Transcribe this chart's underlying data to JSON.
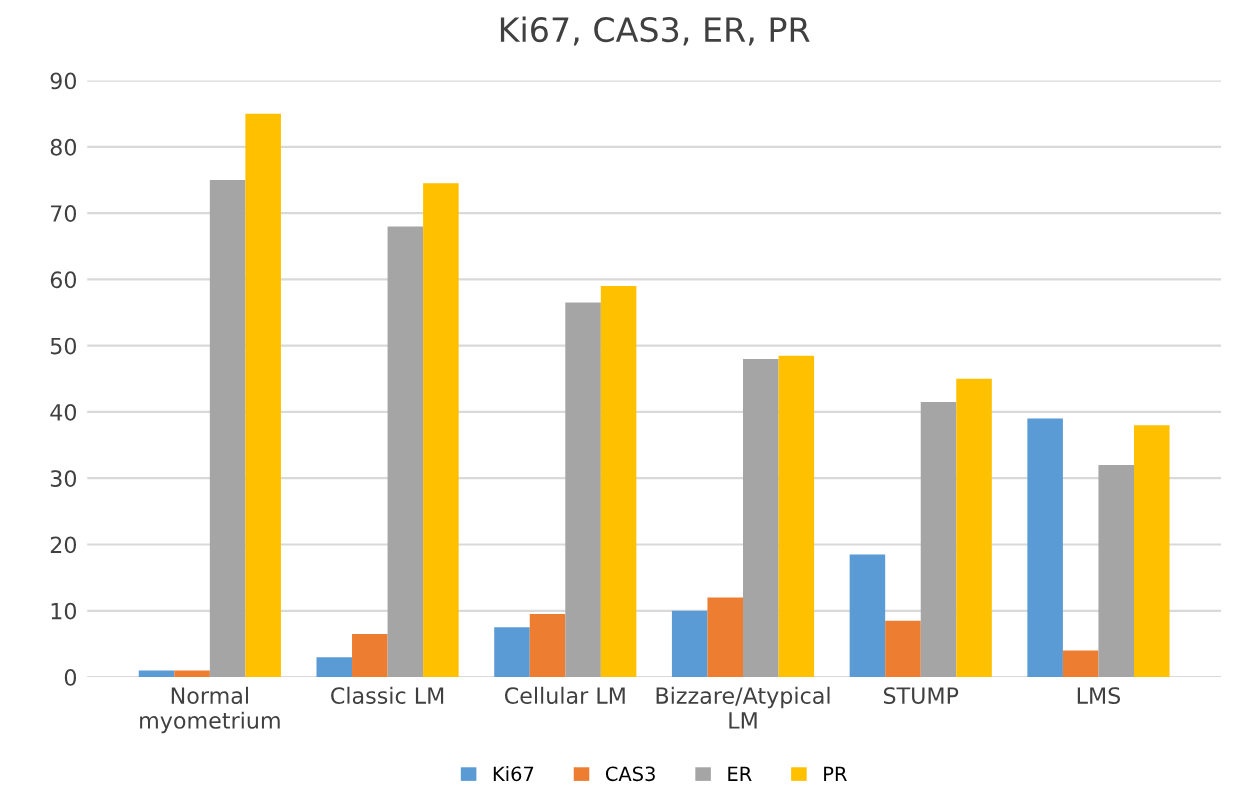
{
  "chart_data": {
    "type": "bar",
    "title": "Ki67, CAS3, ER, PR",
    "categories": [
      "Normal\nmyometrium",
      "Classic LM",
      "Cellular LM",
      "Bizzare/Atypical\nLM",
      "STUMP",
      "LMS"
    ],
    "series": [
      {
        "name": "Ki67",
        "color": "#5b9bd5",
        "values": [
          1,
          3,
          7.5,
          10,
          18.5,
          39
        ]
      },
      {
        "name": "CAS3",
        "color": "#ed7d31",
        "values": [
          1,
          6.5,
          9.5,
          12,
          8.5,
          4
        ]
      },
      {
        "name": "ER",
        "color": "#a5a5a5",
        "values": [
          75,
          68,
          56.5,
          48,
          41.5,
          32
        ]
      },
      {
        "name": "PR",
        "color": "#ffc000",
        "values": [
          85,
          74.5,
          59,
          48.5,
          45,
          38
        ]
      }
    ],
    "ylim": [
      0,
      90
    ],
    "yticks": [
      0,
      10,
      20,
      30,
      40,
      50,
      60,
      70,
      80,
      90
    ],
    "grid": "y",
    "legend": "bottom"
  }
}
